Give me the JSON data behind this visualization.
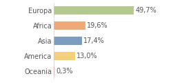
{
  "categories": [
    "Europa",
    "Africa",
    "Asia",
    "America",
    "Oceania"
  ],
  "values": [
    49.7,
    19.6,
    17.4,
    13.0,
    0.3
  ],
  "labels": [
    "49,7%",
    "19,6%",
    "17,4%",
    "13,0%",
    "0,3%"
  ],
  "bar_colors": [
    "#b5c98e",
    "#f0a878",
    "#7b9bbf",
    "#f5d07a",
    "#e87070"
  ],
  "xlim": [
    0,
    60
  ],
  "background_color": "#ffffff",
  "label_fontsize": 7.0,
  "tick_fontsize": 7.0
}
